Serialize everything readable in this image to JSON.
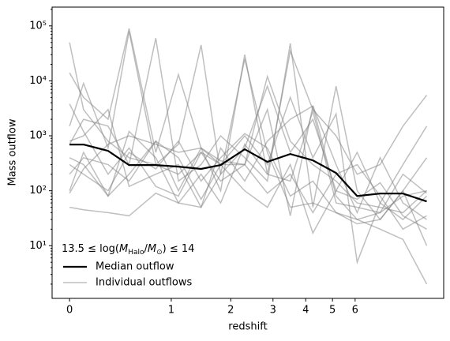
{
  "chart_data": {
    "type": "line",
    "xlabel": "redshift",
    "ylabel": "Mass outflow",
    "xscale": "log1p",
    "yscale": "log",
    "xlim": [
      -0.112,
      11.8
    ],
    "ylim": [
      1.1,
      220000
    ],
    "xticks": [
      0,
      1,
      2,
      3,
      4,
      5,
      6
    ],
    "yticks": [
      {
        "value": 10,
        "label": "10¹"
      },
      {
        "value": 100,
        "label": "10²"
      },
      {
        "value": 1000,
        "label": "10³"
      },
      {
        "value": 10000,
        "label": "10⁴"
      },
      {
        "value": 100000,
        "label": "10⁵"
      }
    ],
    "legend": "lower left",
    "legend_title": [
      "13.5 ≤ log(",
      "M",
      "Halo",
      "/",
      "M",
      "⊙",
      ") ≤ 14"
    ],
    "x": [
      0,
      0.1,
      0.3,
      0.5,
      0.8,
      1.1,
      1.45,
      1.8,
      2.3,
      2.85,
      3.5,
      4.25,
      5.15,
      6.1,
      7.3,
      8.7,
      10.4
    ],
    "median": {
      "name": "Median outflow",
      "color": "#000000",
      "values": [
        695,
        695,
        533,
        294,
        294,
        275,
        250,
        294,
        569,
        335,
        467,
        358,
        211,
        80,
        89,
        89,
        64
      ]
    },
    "individual": {
      "name": "Individual outflows",
      "color": "#808080",
      "series": [
        [
          50000,
          3000,
          800,
          400,
          300,
          200,
          500,
          150,
          300,
          12000,
          800,
          300,
          150,
          60,
          50,
          40,
          100
        ],
        [
          14000,
          5000,
          2000,
          90000,
          500,
          13000,
          600,
          100,
          30000,
          200,
          35000,
          3000,
          1000,
          200,
          300,
          1500,
          5500
        ],
        [
          1500,
          9000,
          600,
          80000,
          300,
          700,
          45000,
          200,
          600,
          8000,
          500,
          2000,
          100,
          500,
          60,
          300,
          1500
        ],
        [
          700,
          2000,
          1500,
          300,
          60000,
          150,
          300,
          1000,
          400,
          150,
          48000,
          50,
          8000,
          100,
          30,
          100,
          400
        ],
        [
          100,
          500,
          80,
          200,
          800,
          100,
          600,
          300,
          1000,
          300,
          5000,
          400,
          2500,
          5,
          60,
          30,
          80
        ],
        [
          50,
          45,
          40,
          35,
          90,
          60,
          50,
          200,
          25000,
          500,
          50,
          60,
          40,
          30,
          40,
          80,
          100
        ],
        [
          200,
          400,
          300,
          150,
          800,
          400,
          70,
          300,
          300,
          3000,
          35,
          3500,
          80,
          30,
          20,
          13,
          2
        ],
        [
          3800,
          1200,
          200,
          600,
          120,
          80,
          500,
          300,
          100,
          50,
          300,
          17,
          100,
          70,
          140,
          35,
          20
        ],
        [
          400,
          300,
          80,
          1200,
          400,
          60,
          200,
          60,
          700,
          200,
          150,
          2800,
          60,
          50,
          40,
          200,
          90
        ],
        [
          800,
          1000,
          3000,
          120,
          200,
          300,
          50,
          600,
          150,
          800,
          2000,
          3500,
          300,
          40,
          400,
          60,
          30
        ],
        [
          300,
          200,
          100,
          500,
          250,
          800,
          150,
          400,
          1100,
          600,
          80,
          150,
          40,
          25,
          30,
          100,
          10
        ],
        [
          90,
          250,
          700,
          1000,
          700,
          500,
          600,
          350,
          300,
          90,
          200,
          40,
          200,
          300,
          80,
          20,
          35
        ]
      ]
    }
  }
}
